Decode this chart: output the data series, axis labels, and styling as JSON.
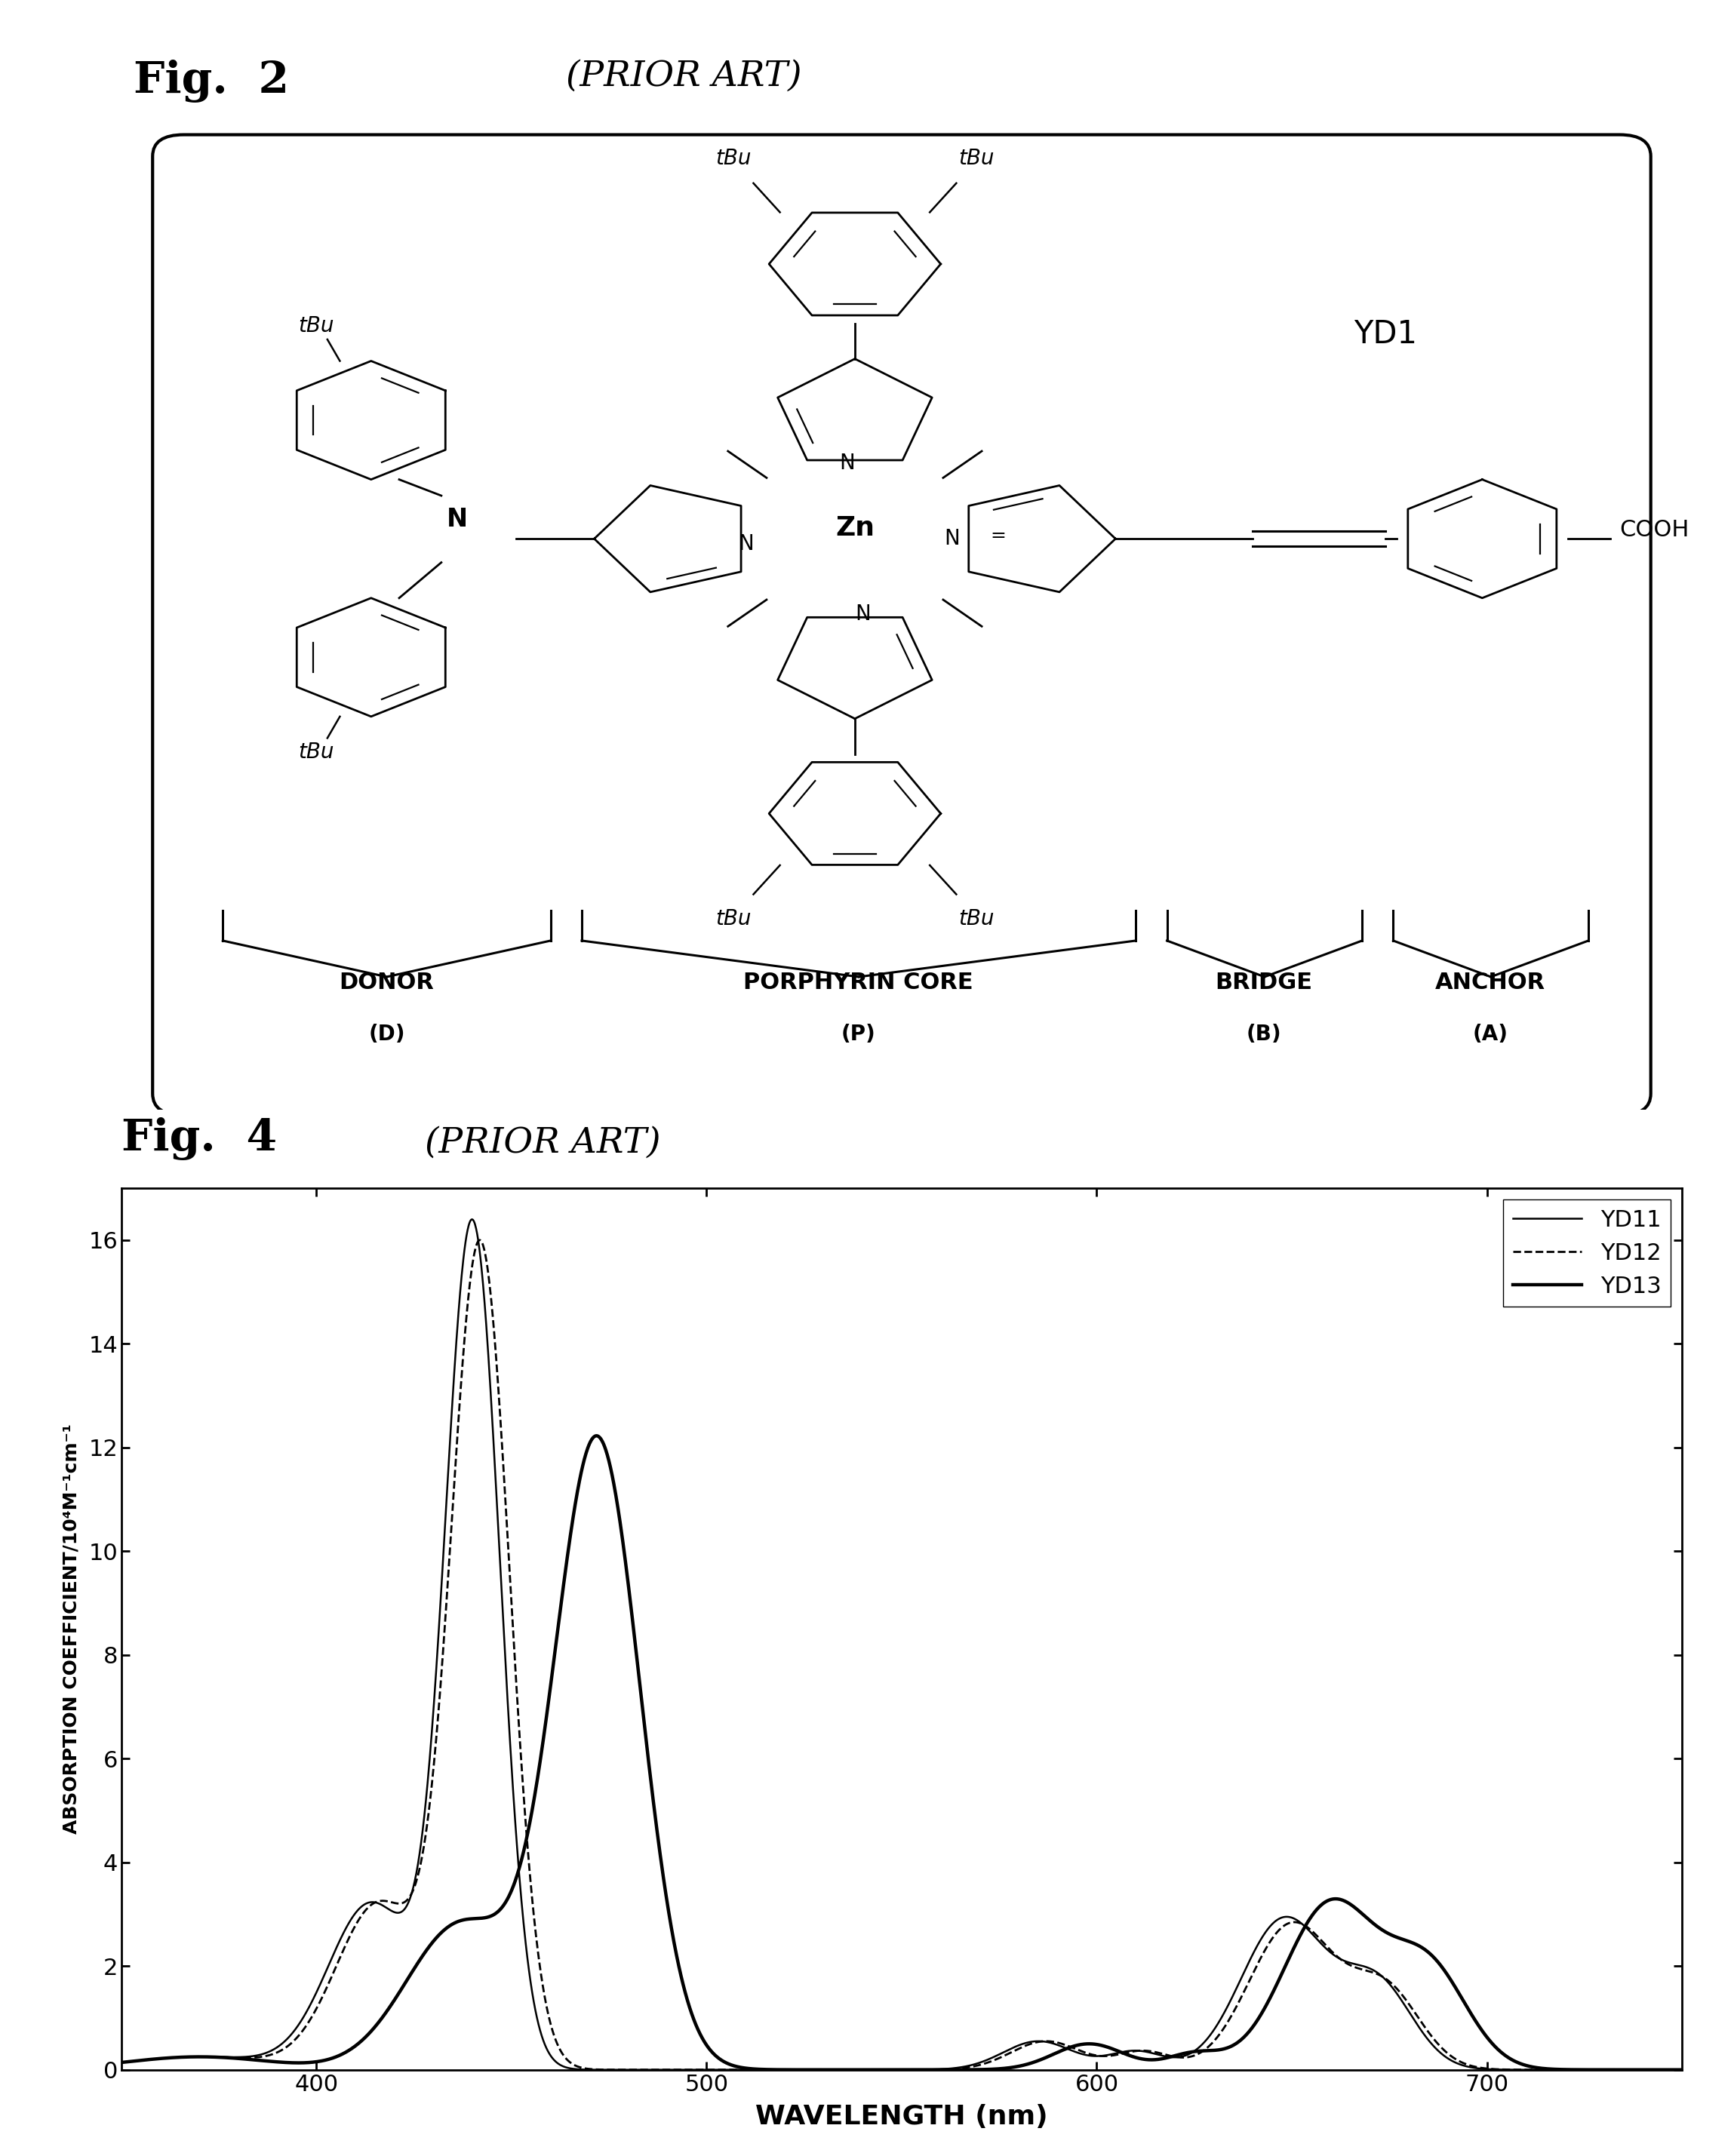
{
  "fig2_title": "Fig.  2",
  "fig2_subtitle": "(PRIOR ART)",
  "fig4_title": "Fig.  4",
  "fig4_subtitle": "(PRIOR ART)",
  "yd1_label": "YD1",
  "xlabel": "WAVELENGTH (nm)",
  "ylabel": "ABSORPTION COEFFICIENT/10⁴M⁻¹cm⁻¹",
  "xlim": [
    350,
    750
  ],
  "ylim": [
    0,
    17
  ],
  "yticks": [
    0,
    2,
    4,
    6,
    8,
    10,
    12,
    14,
    16
  ],
  "xticks": [
    400,
    500,
    600,
    700
  ],
  "legend_labels": [
    "YD11",
    "YD12",
    "YD13"
  ],
  "background": "#ffffff",
  "text_color": "#000000"
}
